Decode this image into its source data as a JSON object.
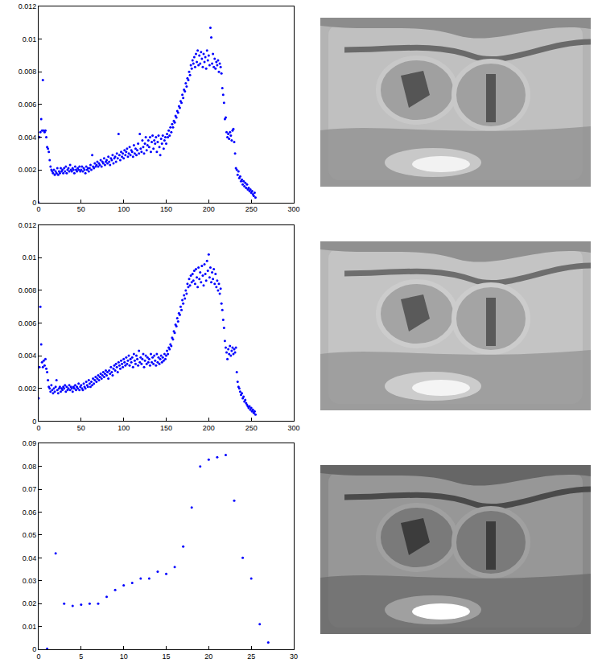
{
  "chart_data": [
    {
      "type": "scatter",
      "color": "#0000ff",
      "marker": "dot",
      "grid": false,
      "xlim": [
        0,
        300
      ],
      "xticks": [
        0,
        50,
        100,
        150,
        200,
        250,
        300
      ],
      "ylim": [
        0,
        0.012
      ],
      "yticks": [
        0,
        0.002,
        0.004,
        0.006,
        0.008,
        0.01,
        0.012
      ],
      "x": [
        0,
        1,
        2,
        3,
        4,
        5,
        6,
        7,
        8,
        9,
        10,
        11,
        12,
        13,
        14,
        15,
        16,
        17,
        18,
        19,
        20,
        21,
        22,
        23,
        24,
        25,
        26,
        27,
        28,
        29,
        30,
        31,
        32,
        33,
        34,
        35,
        36,
        37,
        38,
        39,
        40,
        41,
        42,
        43,
        44,
        45,
        46,
        47,
        48,
        49,
        50,
        51,
        52,
        53,
        54,
        55,
        56,
        57,
        58,
        59,
        60,
        61,
        62,
        63,
        64,
        65,
        66,
        67,
        68,
        69,
        70,
        71,
        72,
        73,
        74,
        75,
        76,
        77,
        78,
        79,
        80,
        81,
        82,
        83,
        84,
        85,
        86,
        87,
        88,
        89,
        90,
        91,
        92,
        93,
        94,
        95,
        96,
        97,
        98,
        99,
        100,
        101,
        102,
        103,
        104,
        105,
        106,
        107,
        108,
        109,
        110,
        111,
        112,
        113,
        114,
        115,
        116,
        117,
        118,
        119,
        120,
        121,
        122,
        123,
        124,
        125,
        126,
        127,
        128,
        129,
        130,
        131,
        132,
        133,
        134,
        135,
        136,
        137,
        138,
        139,
        140,
        141,
        142,
        143,
        144,
        145,
        146,
        147,
        148,
        149,
        150,
        151,
        152,
        153,
        154,
        155,
        156,
        157,
        158,
        159,
        160,
        161,
        162,
        163,
        164,
        165,
        166,
        167,
        168,
        169,
        170,
        171,
        172,
        173,
        174,
        175,
        176,
        177,
        178,
        179,
        180,
        181,
        182,
        183,
        184,
        185,
        186,
        187,
        188,
        189,
        190,
        191,
        192,
        193,
        194,
        195,
        196,
        197,
        198,
        199,
        200,
        201,
        202,
        203,
        204,
        205,
        206,
        207,
        208,
        209,
        210,
        211,
        212,
        213,
        214,
        215,
        216,
        217,
        218,
        219,
        220,
        221,
        222,
        223,
        224,
        225,
        226,
        227,
        228,
        229,
        230,
        231,
        232,
        233,
        234,
        235,
        236,
        237,
        238,
        239,
        240,
        241,
        242,
        243,
        244,
        245,
        246,
        247,
        248,
        249,
        250,
        251,
        252,
        253,
        254,
        255
      ],
      "values": [
        0,
        0.004,
        0.0043,
        0.0051,
        0.0044,
        0.0075,
        0.0044,
        0.0043,
        0.0044,
        0.004,
        0.0034,
        0.0033,
        0.0031,
        0.0026,
        0.0022,
        0.002,
        0.0019,
        0.0018,
        0.002,
        0.0017,
        0.0019,
        0.0018,
        0.0021,
        0.0017,
        0.0019,
        0.0018,
        0.0021,
        0.0019,
        0.002,
        0.0018,
        0.0021,
        0.0019,
        0.0022,
        0.0018,
        0.002,
        0.0021,
        0.0019,
        0.0023,
        0.002,
        0.0019,
        0.0021,
        0.002,
        0.0018,
        0.0022,
        0.002,
        0.0019,
        0.0021,
        0.002,
        0.0022,
        0.0019,
        0.002,
        0.0022,
        0.0019,
        0.0021,
        0.002,
        0.0018,
        0.0022,
        0.002,
        0.0021,
        0.0019,
        0.0021,
        0.0023,
        0.002,
        0.0029,
        0.0022,
        0.0021,
        0.0024,
        0.0022,
        0.0023,
        0.0025,
        0.0022,
        0.0024,
        0.0023,
        0.0026,
        0.0022,
        0.0025,
        0.0024,
        0.0027,
        0.0023,
        0.0025,
        0.0026,
        0.0024,
        0.0028,
        0.0025,
        0.0023,
        0.0027,
        0.0026,
        0.0029,
        0.0024,
        0.0027,
        0.0028,
        0.0025,
        0.003,
        0.0027,
        0.0042,
        0.0029,
        0.0026,
        0.0031,
        0.0028,
        0.003,
        0.0027,
        0.0032,
        0.0029,
        0.0031,
        0.0033,
        0.0028,
        0.003,
        0.0034,
        0.0029,
        0.0032,
        0.0031,
        0.0028,
        0.0035,
        0.003,
        0.0033,
        0.0029,
        0.0032,
        0.0036,
        0.003,
        0.0042,
        0.0033,
        0.0031,
        0.0038,
        0.0034,
        0.003,
        0.0036,
        0.004,
        0.0032,
        0.0035,
        0.0038,
        0.0034,
        0.004,
        0.0031,
        0.0037,
        0.0041,
        0.0033,
        0.0038,
        0.0036,
        0.004,
        0.0031,
        0.0037,
        0.0041,
        0.0034,
        0.0029,
        0.0039,
        0.0036,
        0.0041,
        0.0033,
        0.0038,
        0.004,
        0.0036,
        0.0042,
        0.004,
        0.0044,
        0.0041,
        0.0046,
        0.0043,
        0.0048,
        0.0046,
        0.005,
        0.0049,
        0.0053,
        0.0052,
        0.0056,
        0.0055,
        0.0059,
        0.0058,
        0.0062,
        0.0061,
        0.0066,
        0.0064,
        0.0069,
        0.0068,
        0.0073,
        0.0071,
        0.0076,
        0.0075,
        0.008,
        0.0078,
        0.0084,
        0.0082,
        0.0087,
        0.0085,
        0.0089,
        0.0083,
        0.0091,
        0.0086,
        0.0093,
        0.0084,
        0.009,
        0.0085,
        0.0092,
        0.0088,
        0.0083,
        0.0091,
        0.0086,
        0.0089,
        0.0082,
        0.0093,
        0.0087,
        0.009,
        0.0084,
        0.0107,
        0.0101,
        0.0085,
        0.0091,
        0.0083,
        0.0088,
        0.0082,
        0.0086,
        0.0084,
        0.0087,
        0.008,
        0.0085,
        0.0083,
        0.0079,
        0.007,
        0.0066,
        0.0061,
        0.0051,
        0.0052,
        0.0043,
        0.004,
        0.0042,
        0.0039,
        0.0043,
        0.0041,
        0.0038,
        0.0044,
        0.0045,
        0.0037,
        0.003,
        0.0021,
        0.002,
        0.0017,
        0.0019,
        0.0015,
        0.0016,
        0.0013,
        0.0014,
        0.0011,
        0.0013,
        0.001,
        0.0012,
        0.0009,
        0.0011,
        0.0008,
        0.0009,
        0.0007,
        0.0008,
        0.0006,
        0.0007,
        0.0005,
        0.0004,
        0.0006,
        0.0003
      ]
    },
    {
      "type": "scatter",
      "color": "#0000ff",
      "marker": "dot",
      "grid": false,
      "xlim": [
        0,
        300
      ],
      "xticks": [
        0,
        50,
        100,
        150,
        200,
        250,
        300
      ],
      "ylim": [
        0,
        0.012
      ],
      "yticks": [
        0,
        0.002,
        0.004,
        0.006,
        0.008,
        0.01,
        0.012
      ],
      "x": [
        0,
        1,
        2,
        3,
        4,
        5,
        6,
        7,
        8,
        9,
        10,
        11,
        12,
        13,
        14,
        15,
        16,
        17,
        18,
        19,
        20,
        21,
        22,
        23,
        24,
        25,
        26,
        27,
        28,
        29,
        30,
        31,
        32,
        33,
        34,
        35,
        36,
        37,
        38,
        39,
        40,
        41,
        42,
        43,
        44,
        45,
        46,
        47,
        48,
        49,
        50,
        51,
        52,
        53,
        54,
        55,
        56,
        57,
        58,
        59,
        60,
        61,
        62,
        63,
        64,
        65,
        66,
        67,
        68,
        69,
        70,
        71,
        72,
        73,
        74,
        75,
        76,
        77,
        78,
        79,
        80,
        81,
        82,
        83,
        84,
        85,
        86,
        87,
        88,
        89,
        90,
        91,
        92,
        93,
        94,
        95,
        96,
        97,
        98,
        99,
        100,
        101,
        102,
        103,
        104,
        105,
        106,
        107,
        108,
        109,
        110,
        111,
        112,
        113,
        114,
        115,
        116,
        117,
        118,
        119,
        120,
        121,
        122,
        123,
        124,
        125,
        126,
        127,
        128,
        129,
        130,
        131,
        132,
        133,
        134,
        135,
        136,
        137,
        138,
        139,
        140,
        141,
        142,
        143,
        144,
        145,
        146,
        147,
        148,
        149,
        150,
        151,
        152,
        153,
        154,
        155,
        156,
        157,
        158,
        159,
        160,
        161,
        162,
        163,
        164,
        165,
        166,
        167,
        168,
        169,
        170,
        171,
        172,
        173,
        174,
        175,
        176,
        177,
        178,
        179,
        180,
        181,
        182,
        183,
        184,
        185,
        186,
        187,
        188,
        189,
        190,
        191,
        192,
        193,
        194,
        195,
        196,
        197,
        198,
        199,
        200,
        201,
        202,
        203,
        204,
        205,
        206,
        207,
        208,
        209,
        210,
        211,
        212,
        213,
        214,
        215,
        216,
        217,
        218,
        219,
        220,
        221,
        222,
        223,
        224,
        225,
        226,
        227,
        228,
        229,
        230,
        231,
        232,
        233,
        234,
        235,
        236,
        237,
        238,
        239,
        240,
        241,
        242,
        243,
        244,
        245,
        246,
        247,
        248,
        249,
        250,
        251,
        252,
        253,
        254,
        255
      ],
      "values": [
        0.0014,
        0.0033,
        0.007,
        0.0047,
        0.0036,
        0.0033,
        0.0037,
        0.0034,
        0.0038,
        0.0032,
        0.003,
        0.0025,
        0.0021,
        0.002,
        0.0018,
        0.0022,
        0.0019,
        0.0017,
        0.002,
        0.0018,
        0.0021,
        0.0025,
        0.0019,
        0.0017,
        0.002,
        0.0021,
        0.0018,
        0.002,
        0.0019,
        0.0021,
        0.002,
        0.0022,
        0.0018,
        0.0021,
        0.0019,
        0.002,
        0.0022,
        0.0019,
        0.0021,
        0.002,
        0.0018,
        0.0021,
        0.002,
        0.0022,
        0.0019,
        0.0021,
        0.002,
        0.0023,
        0.0019,
        0.0021,
        0.0022,
        0.002,
        0.0019,
        0.0023,
        0.0021,
        0.002,
        0.0024,
        0.0022,
        0.0021,
        0.0025,
        0.0023,
        0.0021,
        0.0024,
        0.0022,
        0.0026,
        0.0023,
        0.0025,
        0.0027,
        0.0024,
        0.0026,
        0.0028,
        0.0025,
        0.0027,
        0.0029,
        0.0026,
        0.0028,
        0.003,
        0.0027,
        0.0029,
        0.0031,
        0.0028,
        0.003,
        0.0026,
        0.0031,
        0.0029,
        0.0033,
        0.003,
        0.0028,
        0.0032,
        0.0034,
        0.0031,
        0.0035,
        0.0033,
        0.003,
        0.0036,
        0.0034,
        0.0032,
        0.0037,
        0.0035,
        0.0033,
        0.0038,
        0.0036,
        0.0034,
        0.0039,
        0.0035,
        0.0037,
        0.004,
        0.0034,
        0.0038,
        0.0036,
        0.0039,
        0.0033,
        0.0041,
        0.0037,
        0.0035,
        0.004,
        0.0038,
        0.0034,
        0.0043,
        0.0036,
        0.0039,
        0.0035,
        0.0038,
        0.0041,
        0.0033,
        0.0037,
        0.004,
        0.0035,
        0.0039,
        0.0036,
        0.0038,
        0.0034,
        0.0041,
        0.0036,
        0.0039,
        0.0035,
        0.004,
        0.0037,
        0.0034,
        0.0041,
        0.0036,
        0.0039,
        0.0035,
        0.0038,
        0.004,
        0.0036,
        0.0039,
        0.0037,
        0.0041,
        0.0038,
        0.004,
        0.0043,
        0.0041,
        0.0045,
        0.0044,
        0.0047,
        0.0046,
        0.0051,
        0.005,
        0.0055,
        0.0054,
        0.0059,
        0.0058,
        0.0063,
        0.0061,
        0.0066,
        0.0065,
        0.007,
        0.0068,
        0.0074,
        0.0072,
        0.0077,
        0.0075,
        0.008,
        0.0078,
        0.0084,
        0.0082,
        0.0087,
        0.0083,
        0.0089,
        0.0085,
        0.009,
        0.0086,
        0.0092,
        0.0084,
        0.0093,
        0.0088,
        0.0082,
        0.0094,
        0.0087,
        0.0091,
        0.0085,
        0.0095,
        0.0089,
        0.0083,
        0.0096,
        0.009,
        0.0086,
        0.0098,
        0.0092,
        0.0102,
        0.0088,
        0.0094,
        0.0085,
        0.0091,
        0.0087,
        0.0093,
        0.0084,
        0.009,
        0.0082,
        0.0086,
        0.008,
        0.0084,
        0.0078,
        0.0081,
        0.0072,
        0.0068,
        0.0062,
        0.0057,
        0.0049,
        0.0045,
        0.0042,
        0.0038,
        0.0044,
        0.0041,
        0.0046,
        0.004,
        0.0043,
        0.0045,
        0.0041,
        0.0044,
        0.0042,
        0.0045,
        0.003,
        0.0024,
        0.0021,
        0.002,
        0.0018,
        0.0016,
        0.0017,
        0.0014,
        0.0015,
        0.0012,
        0.0013,
        0.0011,
        0.001,
        0.0009,
        0.0008,
        0.0009,
        0.0007,
        0.0008,
        0.0006,
        0.0007,
        0.0005,
        0.0006,
        0.0004
      ]
    },
    {
      "type": "scatter",
      "color": "#0000ff",
      "marker": "dot",
      "grid": false,
      "xlim": [
        0,
        30
      ],
      "xticks": [
        0,
        5,
        10,
        15,
        20,
        25,
        30
      ],
      "ylim": [
        0,
        0.09
      ],
      "yticks": [
        0,
        0.01,
        0.02,
        0.03,
        0.04,
        0.05,
        0.06,
        0.07,
        0.08,
        0.09
      ],
      "x": [
        1,
        2,
        3,
        4,
        5,
        6,
        7,
        8,
        9,
        10,
        11,
        12,
        13,
        14,
        15,
        16,
        17,
        18,
        19,
        20,
        21,
        22,
        23,
        24,
        25,
        26,
        27
      ],
      "values": [
        0.0003,
        0.042,
        0.02,
        0.019,
        0.0195,
        0.02,
        0.02,
        0.023,
        0.026,
        0.028,
        0.029,
        0.031,
        0.031,
        0.034,
        0.033,
        0.036,
        0.045,
        0.062,
        0.08,
        0.083,
        0.084,
        0.085,
        0.065,
        0.04,
        0.031,
        0.011,
        0.003
      ]
    }
  ]
}
